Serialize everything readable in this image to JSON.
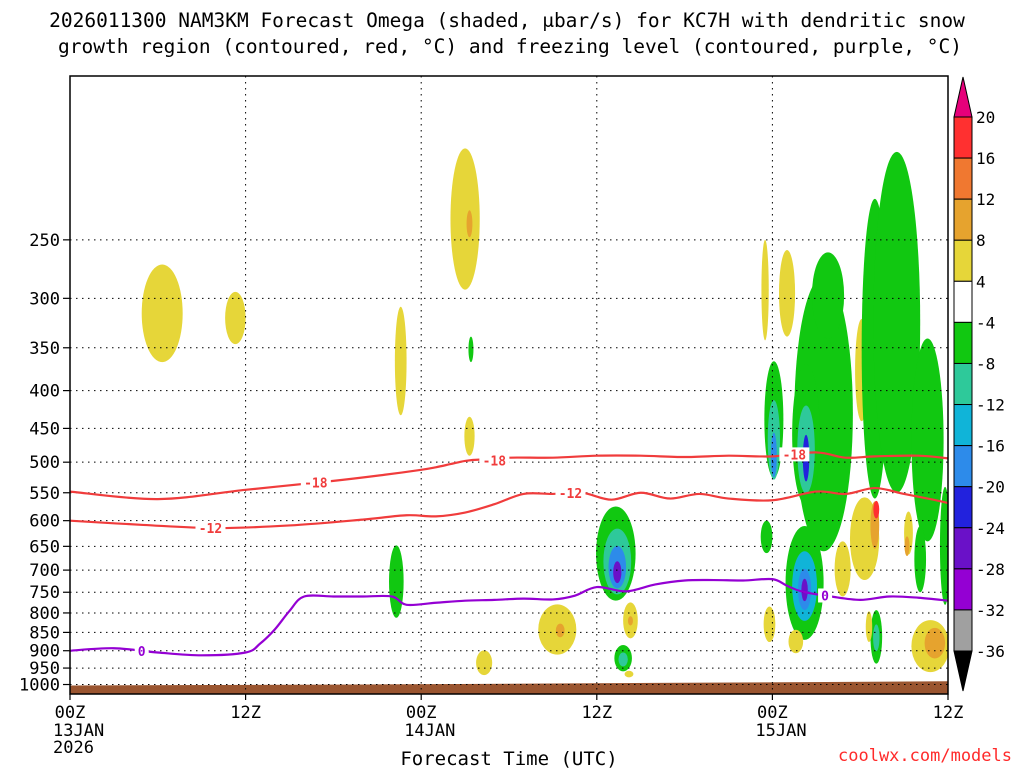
{
  "title": {
    "line1": "2026011300 NAM3KM Forecast Omega (shaded, μbar/s) for KC7H with dendritic snow",
    "line2": "growth region (contoured, red, °C) and freezing level (contoured, purple, °C)"
  },
  "credit": "coolwx.com/models",
  "chart_data": {
    "type": "heatmap",
    "title": "2026011300 NAM3KM Forecast Omega (shaded, μbar/s) for KC7H with dendritic snow growth region (contoured, red, °C) and freezing level (contoured, purple, °C)",
    "xlabel": "Forecast Time (UTC)",
    "ylabel": "",
    "x_unit": "forecast hour",
    "xlim": [
      0,
      60
    ],
    "ylim": [
      1030,
      150
    ],
    "x_ticks": [
      {
        "hour": 0,
        "line1": "00Z",
        "line2": "13JAN",
        "line3": "2026"
      },
      {
        "hour": 12,
        "line1": "12Z",
        "line2": "",
        "line3": ""
      },
      {
        "hour": 24,
        "line1": "00Z",
        "line2": "14JAN",
        "line3": ""
      },
      {
        "hour": 36,
        "line1": "12Z",
        "line2": "",
        "line3": ""
      },
      {
        "hour": 48,
        "line1": "00Z",
        "line2": "15JAN",
        "line3": ""
      },
      {
        "hour": 60,
        "line1": "12Z",
        "line2": "",
        "line3": ""
      }
    ],
    "y_ticks": [
      {
        "p": 250,
        "label": "250"
      },
      {
        "p": 300,
        "label": "300"
      },
      {
        "p": 350,
        "label": "350"
      },
      {
        "p": 400,
        "label": "400"
      },
      {
        "p": 450,
        "label": "450"
      },
      {
        "p": 500,
        "label": "500"
      },
      {
        "p": 550,
        "label": "550"
      },
      {
        "p": 600,
        "label": "600"
      },
      {
        "p": 650,
        "label": "650"
      },
      {
        "p": 700,
        "label": "700"
      },
      {
        "p": 750,
        "label": "750"
      },
      {
        "p": 800,
        "label": "800"
      },
      {
        "p": 850,
        "label": "850"
      },
      {
        "p": 900,
        "label": "900"
      },
      {
        "p": 950,
        "label": "950"
      },
      {
        "p": 1000,
        "label": "1000"
      }
    ],
    "colorbar": {
      "labels": [
        "20",
        "16",
        "12",
        "8",
        "4",
        "-4",
        "-8",
        "-12",
        "-16",
        "-20",
        "-24",
        "-28",
        "-32",
        "-36"
      ],
      "bins": [
        {
          "lo": 20,
          "hi": 24,
          "color": "#e6007a"
        },
        {
          "lo": 16,
          "hi": 20,
          "color": "#ff3030"
        },
        {
          "lo": 12,
          "hi": 16,
          "color": "#f07830"
        },
        {
          "lo": 8,
          "hi": 12,
          "color": "#e6a32e"
        },
        {
          "lo": 4,
          "hi": 8,
          "color": "#e6d639"
        },
        {
          "lo": -4,
          "hi": 4,
          "color": "#ffffff"
        },
        {
          "lo": -8,
          "hi": -4,
          "color": "#11c811"
        },
        {
          "lo": -12,
          "hi": -8,
          "color": "#2ec99a"
        },
        {
          "lo": -16,
          "hi": -12,
          "color": "#10b4d8"
        },
        {
          "lo": -20,
          "hi": -16,
          "color": "#2d8bea"
        },
        {
          "lo": -24,
          "hi": -20,
          "color": "#2222dd"
        },
        {
          "lo": -28,
          "hi": -24,
          "color": "#6a11c8"
        },
        {
          "lo": -32,
          "hi": -28,
          "color": "#9400d3"
        },
        {
          "lo": -36,
          "hi": -32,
          "color": "#a0a0a0"
        },
        {
          "lo": -40,
          "hi": -36,
          "color": "#000000"
        }
      ]
    },
    "omega_cells": [
      {
        "t": 6.3,
        "p": 318,
        "dt": 1.4,
        "dp": 48,
        "value": 5
      },
      {
        "t": 11.3,
        "p": 320,
        "dt": 0.7,
        "dp": 26,
        "value": 5
      },
      {
        "t": 22.6,
        "p": 370,
        "dt": 0.4,
        "dp": 62,
        "value": 5
      },
      {
        "t": 27.0,
        "p": 240,
        "dt": 1.0,
        "dp": 52,
        "value": 5
      },
      {
        "t": 27.3,
        "p": 238,
        "dt": 0.2,
        "dp": 10,
        "value": 10
      },
      {
        "t": 27.4,
        "p": 352,
        "dt": 0.12,
        "dp": 14,
        "value": -6
      },
      {
        "t": 27.3,
        "p": 462,
        "dt": 0.35,
        "dp": 28,
        "value": 5
      },
      {
        "t": 22.3,
        "p": 730,
        "dt": 0.5,
        "dp": 82,
        "value": -6
      },
      {
        "t": 28.3,
        "p": 935,
        "dt": 0.55,
        "dp": 36,
        "value": 5
      },
      {
        "t": 33.3,
        "p": 845,
        "dt": 1.3,
        "dp": 66,
        "value": 5
      },
      {
        "t": 33.5,
        "p": 845,
        "dt": 0.3,
        "dp": 18,
        "value": 10
      },
      {
        "t": 37.3,
        "p": 672,
        "dt": 1.35,
        "dp": 98,
        "value": -6
      },
      {
        "t": 37.4,
        "p": 685,
        "dt": 0.95,
        "dp": 70,
        "value": -12
      },
      {
        "t": 37.4,
        "p": 695,
        "dt": 0.6,
        "dp": 46,
        "value": -20
      },
      {
        "t": 37.4,
        "p": 705,
        "dt": 0.28,
        "dp": 24,
        "value": -26
      },
      {
        "t": 38.3,
        "p": 820,
        "dt": 0.5,
        "dp": 46,
        "value": 5
      },
      {
        "t": 38.3,
        "p": 820,
        "dt": 0.12,
        "dp": 12,
        "value": 10
      },
      {
        "t": 37.8,
        "p": 922,
        "dt": 0.6,
        "dp": 38,
        "value": -6
      },
      {
        "t": 37.8,
        "p": 925,
        "dt": 0.32,
        "dp": 20,
        "value": -12
      },
      {
        "t": 38.2,
        "p": 968,
        "dt": 0.3,
        "dp": 10,
        "value": 5
      },
      {
        "t": 47.5,
        "p": 296,
        "dt": 0.25,
        "dp": 46,
        "value": 5
      },
      {
        "t": 49.0,
        "p": 298,
        "dt": 0.55,
        "dp": 40,
        "value": 5
      },
      {
        "t": 51.5,
        "p": 470,
        "dt": 2.0,
        "dp": 190,
        "value": -6
      },
      {
        "t": 51.8,
        "p": 300,
        "dt": 1.1,
        "dp": 40,
        "value": -6
      },
      {
        "t": 48.1,
        "p": 445,
        "dt": 0.65,
        "dp": 80,
        "value": -6
      },
      {
        "t": 48.1,
        "p": 470,
        "dt": 0.42,
        "dp": 58,
        "value": -12
      },
      {
        "t": 48.1,
        "p": 490,
        "dt": 0.2,
        "dp": 34,
        "value": -20
      },
      {
        "t": 50.3,
        "p": 470,
        "dt": 0.95,
        "dp": 102,
        "value": -6
      },
      {
        "t": 50.3,
        "p": 485,
        "dt": 0.6,
        "dp": 66,
        "value": -12
      },
      {
        "t": 50.3,
        "p": 495,
        "dt": 0.22,
        "dp": 36,
        "value": -24
      },
      {
        "t": 50.2,
        "p": 740,
        "dt": 1.3,
        "dp": 130,
        "value": -6
      },
      {
        "t": 50.2,
        "p": 740,
        "dt": 0.85,
        "dp": 80,
        "value": -14
      },
      {
        "t": 50.2,
        "p": 745,
        "dt": 0.45,
        "dp": 48,
        "value": -20
      },
      {
        "t": 50.2,
        "p": 745,
        "dt": 0.22,
        "dp": 26,
        "value": -28
      },
      {
        "t": 47.6,
        "p": 632,
        "dt": 0.4,
        "dp": 32,
        "value": -6
      },
      {
        "t": 47.8,
        "p": 830,
        "dt": 0.4,
        "dp": 46,
        "value": 5
      },
      {
        "t": 49.6,
        "p": 875,
        "dt": 0.5,
        "dp": 32,
        "value": 5
      },
      {
        "t": 52.8,
        "p": 700,
        "dt": 0.55,
        "dp": 60,
        "value": 5
      },
      {
        "t": 54.1,
        "p": 380,
        "dt": 0.45,
        "dp": 60,
        "value": 5
      },
      {
        "t": 54.3,
        "p": 640,
        "dt": 1.0,
        "dp": 82,
        "value": 5
      },
      {
        "t": 55.0,
        "p": 610,
        "dt": 0.3,
        "dp": 45,
        "value": 10
      },
      {
        "t": 55.1,
        "p": 580,
        "dt": 0.2,
        "dp": 16,
        "value": 18
      },
      {
        "t": 55.0,
        "p": 390,
        "dt": 0.9,
        "dp": 170,
        "value": -6
      },
      {
        "t": 56.5,
        "p": 370,
        "dt": 1.6,
        "dp": 180,
        "value": -6
      },
      {
        "t": 58.6,
        "p": 490,
        "dt": 1.1,
        "dp": 150,
        "value": -6
      },
      {
        "t": 58.1,
        "p": 680,
        "dt": 0.4,
        "dp": 70,
        "value": -6
      },
      {
        "t": 57.3,
        "p": 625,
        "dt": 0.3,
        "dp": 42,
        "value": 5
      },
      {
        "t": 57.2,
        "p": 650,
        "dt": 0.15,
        "dp": 20,
        "value": 10
      },
      {
        "t": 55.1,
        "p": 865,
        "dt": 0.4,
        "dp": 72,
        "value": -6
      },
      {
        "t": 55.1,
        "p": 865,
        "dt": 0.22,
        "dp": 36,
        "value": -12
      },
      {
        "t": 54.6,
        "p": 836,
        "dt": 0.22,
        "dp": 40,
        "value": 5
      },
      {
        "t": 58.8,
        "p": 890,
        "dt": 1.3,
        "dp": 72,
        "value": 5
      },
      {
        "t": 59.1,
        "p": 880,
        "dt": 0.7,
        "dp": 42,
        "value": 10
      },
      {
        "t": 59.8,
        "p": 660,
        "dt": 0.35,
        "dp": 120,
        "value": -6
      }
    ],
    "contours": [
      {
        "name": "dgz-upper-18C",
        "color": "#f03c3c",
        "label": "-18",
        "label_hour": 16.8,
        "points": [
          [
            0,
            548
          ],
          [
            6,
            561
          ],
          [
            12,
            545
          ],
          [
            18,
            530
          ],
          [
            21.5,
            520
          ],
          [
            24,
            512
          ],
          [
            25,
            508
          ],
          [
            26,
            503
          ],
          [
            27,
            498
          ],
          [
            28,
            496
          ],
          [
            29,
            497
          ],
          [
            30,
            493
          ],
          [
            33,
            493
          ],
          [
            36,
            490
          ],
          [
            39,
            490
          ],
          [
            42,
            492
          ],
          [
            45,
            490
          ],
          [
            48,
            491
          ],
          [
            51,
            485
          ],
          [
            53,
            493
          ],
          [
            55,
            491
          ],
          [
            58,
            490
          ],
          [
            60,
            494
          ]
        ]
      },
      {
        "name": "dgz-lower-12C",
        "color": "#f03c3c",
        "label": "-12",
        "label_hour": 9.6,
        "points": [
          [
            0,
            600
          ],
          [
            5,
            608
          ],
          [
            10,
            614
          ],
          [
            15,
            609
          ],
          [
            20,
            598
          ],
          [
            23,
            590
          ],
          [
            25,
            592
          ],
          [
            27,
            585
          ],
          [
            29,
            570
          ],
          [
            31,
            552
          ],
          [
            33,
            552
          ],
          [
            35,
            550
          ],
          [
            37,
            562
          ],
          [
            39,
            550
          ],
          [
            41,
            560
          ],
          [
            43,
            552
          ],
          [
            45,
            560
          ],
          [
            48,
            563
          ],
          [
            51,
            548
          ],
          [
            53,
            552
          ],
          [
            55,
            542
          ],
          [
            57,
            552
          ],
          [
            59,
            562
          ],
          [
            60,
            568
          ]
        ]
      },
      {
        "name": "freezing-level-0C",
        "color": "#9400d3",
        "label": "0",
        "label_hour": 4.9,
        "points": [
          [
            0,
            900
          ],
          [
            3,
            893
          ],
          [
            6,
            905
          ],
          [
            9,
            913
          ],
          [
            12,
            905
          ],
          [
            13,
            880
          ],
          [
            14,
            842
          ],
          [
            15,
            795
          ],
          [
            16,
            760
          ],
          [
            18,
            760
          ],
          [
            20,
            760
          ],
          [
            22,
            760
          ],
          [
            23,
            780
          ],
          [
            25,
            775
          ],
          [
            27,
            770
          ],
          [
            29,
            768
          ],
          [
            31,
            765
          ],
          [
            33,
            767
          ],
          [
            34.5,
            758
          ],
          [
            36,
            738
          ],
          [
            38,
            748
          ],
          [
            40,
            732
          ],
          [
            42,
            723
          ],
          [
            44,
            722
          ],
          [
            46,
            723
          ],
          [
            48,
            720
          ],
          [
            49,
            735
          ],
          [
            50,
            748
          ],
          [
            52,
            760
          ],
          [
            54,
            768
          ],
          [
            56,
            760
          ],
          [
            58,
            763
          ],
          [
            60,
            770
          ]
        ]
      }
    ],
    "terrain": {
      "color": "#9a5530",
      "top_p": [
        [
          0,
          1003
        ],
        [
          20,
          1000
        ],
        [
          40,
          995
        ],
        [
          60,
          990
        ]
      ]
    }
  }
}
